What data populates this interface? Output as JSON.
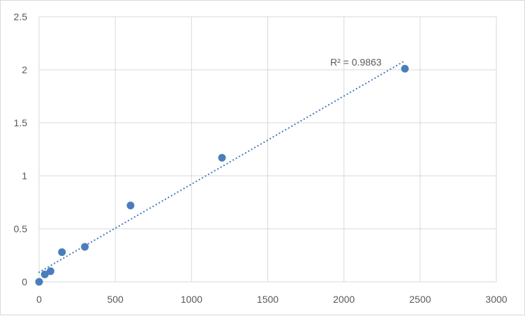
{
  "chart_data": {
    "type": "scatter",
    "title": "",
    "xlabel": "",
    "ylabel": "",
    "xlim": [
      0,
      3000
    ],
    "ylim": [
      0,
      2.5
    ],
    "xticks": [
      0,
      500,
      1000,
      1500,
      2000,
      2500,
      3000
    ],
    "yticks": [
      0,
      0.5,
      1,
      1.5,
      2,
      2.5
    ],
    "ytick_labels": [
      "0",
      "0.5",
      "1",
      "1.5",
      "2",
      "2.5"
    ],
    "grid": true,
    "legend": "none",
    "series": [
      {
        "x": [
          0,
          37.5,
          75,
          150,
          300,
          600,
          1200,
          2400
        ],
        "y": [
          0,
          0.07,
          0.1,
          0.28,
          0.33,
          0.72,
          1.17,
          2.01
        ],
        "color": "#4a7ebb"
      }
    ],
    "trendline": {
      "type": "linear",
      "style": "dotted",
      "color": "#4a7ebb",
      "label": "R² = 0.9863"
    }
  }
}
